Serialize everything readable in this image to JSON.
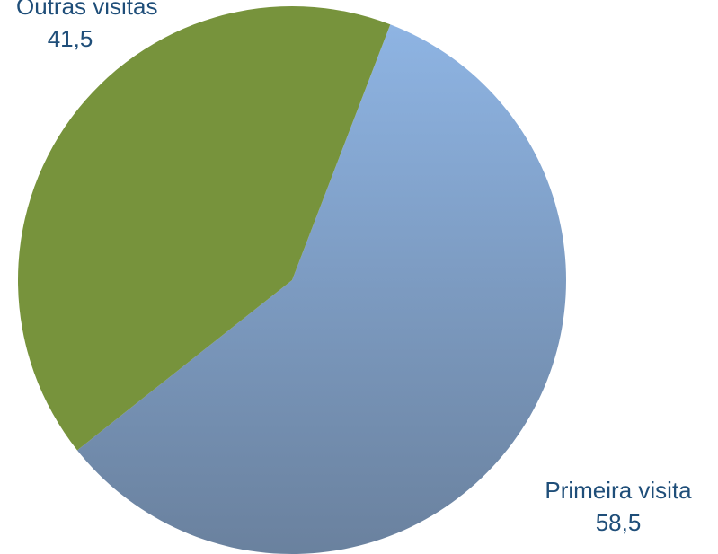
{
  "chart_data": {
    "type": "pie",
    "title": "",
    "categories": [
      "Primeira visita",
      "Outras visitas"
    ],
    "values": [
      58.5,
      41.5
    ],
    "value_labels": [
      "58,5",
      "41,5"
    ],
    "colors": [
      "#7C9CC0",
      "#77933C"
    ],
    "label_color": "#1F4E79",
    "legend": "none"
  }
}
